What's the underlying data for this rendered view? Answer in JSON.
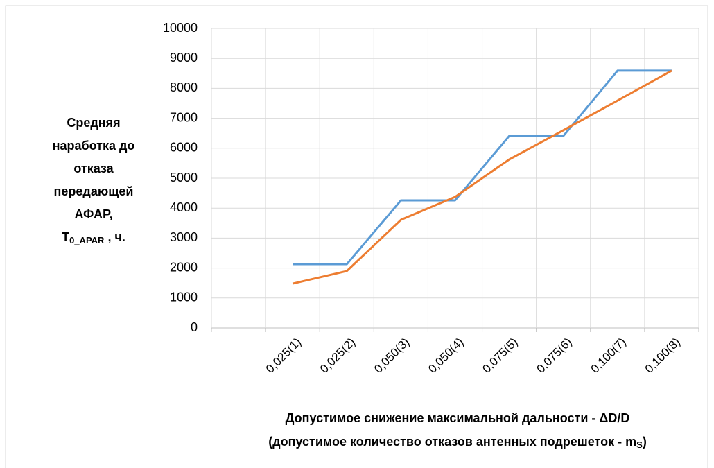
{
  "chart_data": {
    "type": "line",
    "y_label": {
      "lines": [
        "Средняя",
        "наработка до",
        "отказа",
        "передающей",
        "АФАР,"
      ],
      "last": [
        "T",
        "0_APAR",
        " , ч."
      ]
    },
    "x_label": {
      "line1": "Допустимое снижение максимальной дальности - ΔD/D",
      "line2": [
        "(допустимое количество отказов антенных подрешеток  - m",
        "S",
        ")"
      ]
    },
    "categories": [
      null,
      "0,025(1)",
      "0,025(2)",
      "0,050(3)",
      "0,050(4)",
      "0,075(5)",
      "0,075(6)",
      "0,100(7)",
      "0,100(8)"
    ],
    "series": [
      {
        "color": "#5b9bd5",
        "values": [
          null,
          2130,
          2130,
          4260,
          4260,
          6410,
          6410,
          8590,
          8590
        ]
      },
      {
        "color": "#ed7d31",
        "values": [
          null,
          1480,
          1900,
          3610,
          4375,
          5625,
          6600,
          7590,
          8590
        ]
      }
    ],
    "ylim": [
      0,
      10000
    ],
    "yticks": [
      0,
      1000,
      2000,
      3000,
      4000,
      5000,
      6000,
      7000,
      8000,
      9000,
      10000
    ],
    "grid": true
  }
}
